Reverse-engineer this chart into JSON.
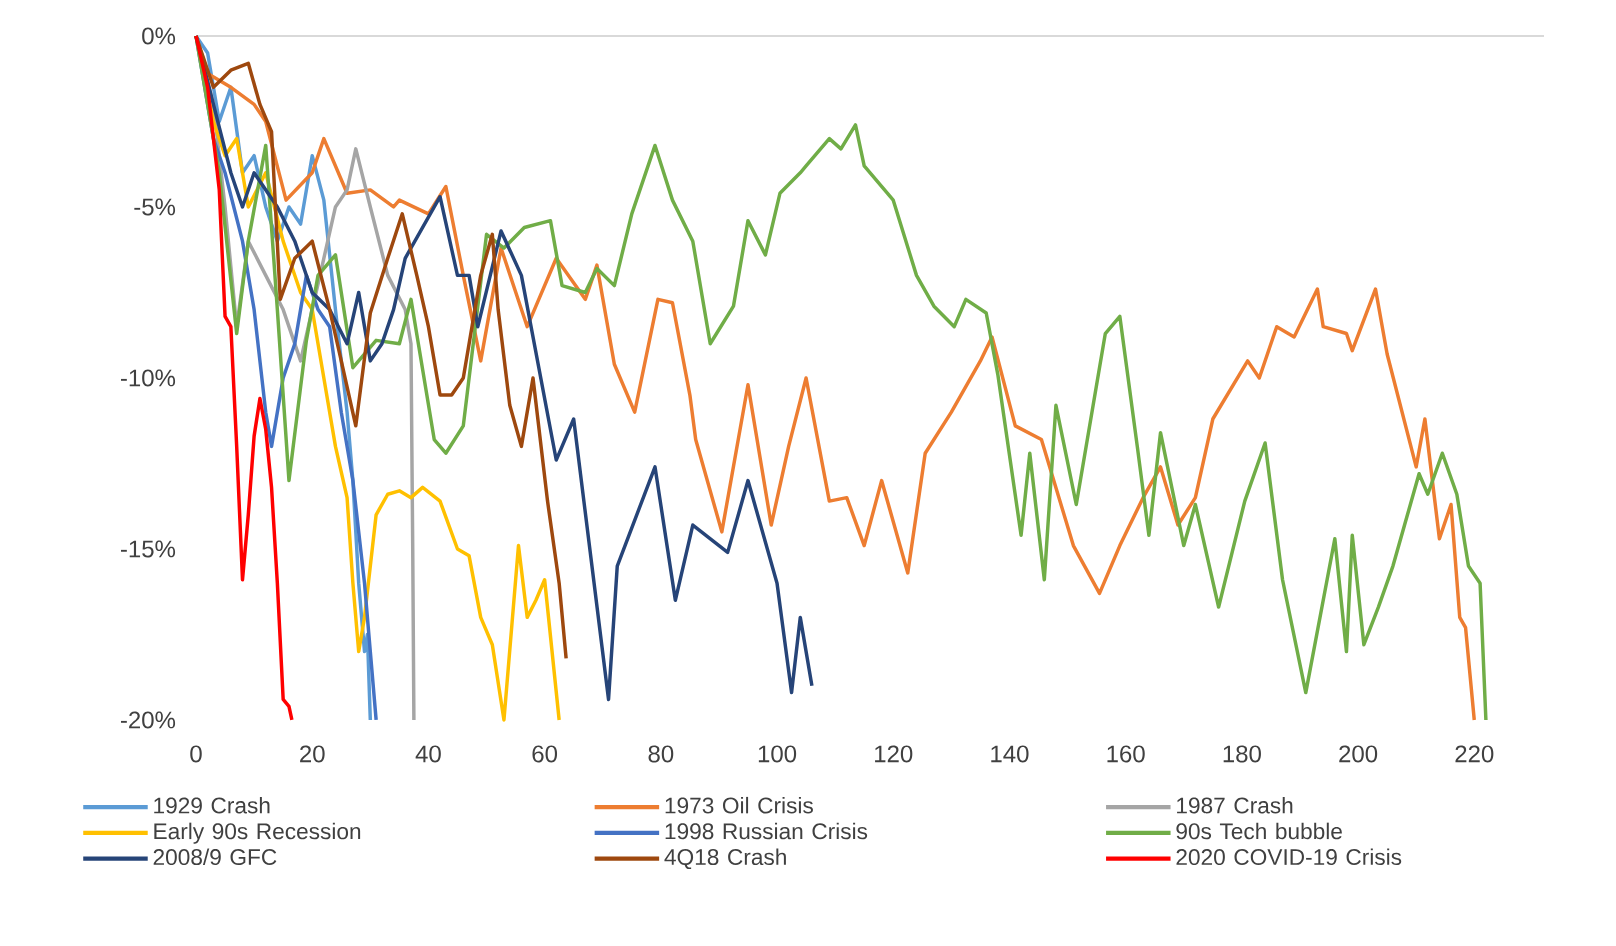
{
  "chart_data": {
    "type": "line",
    "xlim": [
      0,
      232
    ],
    "ylim": [
      -20,
      0
    ],
    "xticks": [
      0,
      20,
      40,
      60,
      80,
      100,
      120,
      140,
      160,
      180,
      200,
      220
    ],
    "yticks": [
      {
        "value": -20,
        "label": "-20%"
      },
      {
        "value": -15,
        "label": "-15%"
      },
      {
        "value": -10,
        "label": "-10%"
      },
      {
        "value": -5,
        "label": "-5%"
      },
      {
        "value": 0,
        "label": "0%"
      }
    ],
    "legend": "bottom",
    "marker": "none",
    "line_style": "solid",
    "series": [
      {
        "name": "1929 Crash",
        "color": "#5b9bd5",
        "x": [
          0,
          2,
          4,
          6,
          8,
          10,
          12,
          14,
          16,
          18,
          20,
          22,
          24,
          26,
          27,
          28,
          29,
          29.5,
          30
        ],
        "values": [
          0,
          -0.5,
          -2.5,
          -1.5,
          -4,
          -3.5,
          -5,
          -6,
          -5,
          -5.5,
          -3.5,
          -4.8,
          -8,
          -11,
          -13,
          -16,
          -18,
          -17.5,
          -20
        ]
      },
      {
        "name": "1973 Oil Crisis",
        "color": "#ed7d31",
        "x": [
          0,
          2,
          6,
          10,
          12,
          15.5,
          20,
          22,
          26,
          30,
          34,
          35,
          40,
          43,
          46,
          49,
          52.5,
          57,
          62,
          67,
          69,
          72,
          75.5,
          79.5,
          82,
          85,
          86,
          90.5,
          95,
          99,
          102,
          105,
          109,
          112,
          115,
          118,
          122.5,
          125.5,
          130,
          135,
          137,
          141,
          145.5,
          151,
          155.5,
          159,
          163,
          166,
          169,
          172,
          175,
          181,
          183,
          186,
          189,
          193,
          194,
          198,
          199,
          203,
          205,
          210,
          211.5,
          214,
          216,
          217.5,
          218.5,
          220
        ],
        "values": [
          0,
          -1.1,
          -1.5,
          -2,
          -2.5,
          -4.8,
          -4,
          -3,
          -4.6,
          -4.5,
          -5,
          -4.8,
          -5.2,
          -4.4,
          -7,
          -9.5,
          -6.2,
          -8.5,
          -6.5,
          -7.7,
          -6.7,
          -9.6,
          -11,
          -7.7,
          -7.8,
          -10.5,
          -11.8,
          -14.5,
          -10.2,
          -14.3,
          -12,
          -10,
          -13.6,
          -13.5,
          -14.9,
          -13,
          -15.7,
          -12.2,
          -11,
          -9.5,
          -8.8,
          -11.4,
          -11.8,
          -14.9,
          -16.3,
          -14.9,
          -13.5,
          -12.6,
          -14.3,
          -13.5,
          -11.2,
          -9.5,
          -10,
          -8.5,
          -8.8,
          -7.4,
          -8.5,
          -8.7,
          -9.2,
          -7.4,
          -9.3,
          -12.6,
          -11.2,
          -14.7,
          -13.7,
          -17,
          -17.3,
          -20
        ]
      },
      {
        "name": "1987 Crash",
        "color": "#a5a5a5",
        "x": [
          0,
          3,
          5,
          7,
          9,
          12,
          15,
          18,
          20,
          22,
          24,
          26,
          27.5,
          30,
          33,
          36,
          37,
          37.3,
          37.5
        ],
        "values": [
          0,
          -2,
          -5,
          -8.5,
          -6,
          -7,
          -8,
          -9.5,
          -8,
          -6.5,
          -5,
          -4.5,
          -3.3,
          -5,
          -7,
          -8,
          -9,
          -15,
          -20
        ]
      },
      {
        "name": "Early 90s Recession",
        "color": "#ffc000",
        "x": [
          0,
          3,
          5,
          7,
          9,
          12,
          15,
          18,
          20,
          22,
          24,
          26,
          27,
          28,
          29,
          31,
          33,
          35,
          37,
          39,
          42,
          45,
          47,
          49,
          51,
          53,
          55.5,
          57,
          58.5,
          60,
          62.5
        ],
        "values": [
          0,
          -2.5,
          -3.5,
          -3,
          -5,
          -4,
          -6,
          -7.5,
          -8,
          -10,
          -12,
          -13.5,
          -16,
          -18,
          -17,
          -14,
          -13.4,
          -13.3,
          -13.5,
          -13.2,
          -13.6,
          -15,
          -15.2,
          -17,
          -17.8,
          -20,
          -14.9,
          -17,
          -16.5,
          -15.9,
          -20
        ]
      },
      {
        "name": "1998 Russian Crisis",
        "color": "#4472c4",
        "x": [
          0,
          3,
          5,
          8,
          10,
          12,
          13,
          15,
          17,
          19,
          21,
          23,
          25,
          27,
          29,
          30,
          31
        ],
        "values": [
          0,
          -3,
          -4,
          -6,
          -8,
          -11,
          -12,
          -10,
          -9,
          -7,
          -8,
          -8.5,
          -11,
          -13,
          -16,
          -18,
          -20
        ]
      },
      {
        "name": "90s Tech bubble",
        "color": "#70ad47",
        "x": [
          0,
          2,
          4,
          7,
          9,
          12,
          14,
          16,
          19,
          21,
          24,
          27,
          31,
          35,
          37,
          41,
          43,
          46,
          50,
          53,
          56.5,
          61,
          63,
          67,
          69,
          72,
          75,
          79,
          82,
          85.5,
          88.5,
          92.5,
          95,
          98,
          100.5,
          104,
          105,
          109,
          111,
          113.5,
          115,
          120,
          124,
          127,
          130.5,
          132.5,
          136,
          138,
          142,
          143.5,
          146,
          148,
          151.5,
          156.5,
          159,
          162,
          164,
          166,
          170,
          172,
          176,
          180.5,
          184,
          187,
          191,
          196,
          198,
          199,
          201,
          203.5,
          206,
          208,
          210.5,
          212,
          214.5,
          217,
          219,
          221,
          222
        ],
        "values": [
          0,
          -2,
          -4,
          -8.7,
          -6,
          -3.2,
          -8,
          -13,
          -8.9,
          -7,
          -6.4,
          -9.7,
          -8.9,
          -9,
          -7.7,
          -11.8,
          -12.2,
          -11.4,
          -5.8,
          -6.2,
          -5.6,
          -5.4,
          -7.3,
          -7.5,
          -6.8,
          -7.3,
          -5.2,
          -3.2,
          -4.8,
          -6,
          -9,
          -7.9,
          -5.4,
          -6.4,
          -4.6,
          -4,
          -3.8,
          -3,
          -3.3,
          -2.6,
          -3.8,
          -4.8,
          -7,
          -7.9,
          -8.5,
          -7.7,
          -8.1,
          -9.9,
          -14.6,
          -12.2,
          -15.9,
          -10.8,
          -13.7,
          -8.7,
          -8.2,
          -12,
          -14.6,
          -11.6,
          -14.9,
          -13.7,
          -16.7,
          -13.6,
          -11.9,
          -15.9,
          -19.2,
          -14.7,
          -18,
          -14.6,
          -17.8,
          -16.7,
          -15.5,
          -14.3,
          -12.8,
          -13.4,
          -12.2,
          -13.4,
          -15.5,
          -16,
          -20
        ]
      },
      {
        "name": "2008/9 GFC",
        "color": "#264478",
        "x": [
          0,
          3,
          6,
          8,
          10,
          14,
          17,
          20,
          23,
          26,
          28,
          30,
          32,
          34,
          36,
          42,
          45,
          47,
          48.5,
          52.5,
          56,
          62,
          65,
          71,
          72.5,
          79,
          82.5,
          85.5,
          91.5,
          95,
          100,
          102.5,
          104,
          106
        ],
        "values": [
          0,
          -2,
          -4,
          -5,
          -4,
          -5,
          -6,
          -7.5,
          -8,
          -9,
          -7.5,
          -9.5,
          -9,
          -8,
          -6.5,
          -4.7,
          -7,
          -7,
          -8.5,
          -5.7,
          -7,
          -12.4,
          -11.2,
          -19.4,
          -15.5,
          -12.6,
          -16.5,
          -14.3,
          -15.1,
          -13,
          -16,
          -19.2,
          -17,
          -19
        ]
      },
      {
        "name": "4Q18 Crash",
        "color": "#9e480e",
        "x": [
          0,
          3,
          6,
          9,
          11,
          13,
          14.5,
          17,
          20,
          23,
          25,
          27.5,
          30,
          33,
          35.5,
          38,
          40,
          42,
          44,
          46,
          49,
          51,
          52,
          54,
          56,
          58,
          60.5,
          62.5,
          63.7
        ],
        "values": [
          0,
          -1.5,
          -1,
          -0.8,
          -2,
          -2.8,
          -7.7,
          -6.5,
          -6,
          -8,
          -9.5,
          -11.4,
          -8.1,
          -6.5,
          -5.2,
          -7,
          -8.5,
          -10.5,
          -10.5,
          -10,
          -7,
          -5.8,
          -8,
          -10.8,
          -12,
          -10,
          -13.6,
          -16,
          -18.2
        ]
      },
      {
        "name": "2020 COVID-19 Crisis",
        "color": "#ff0000",
        "x": [
          0,
          2,
          4,
          5,
          6,
          7,
          8,
          9,
          10,
          11,
          12,
          13,
          14,
          15,
          16,
          16.5
        ],
        "values": [
          0,
          -1.5,
          -4.5,
          -8.2,
          -8.5,
          -12,
          -15.9,
          -14,
          -11.7,
          -10.6,
          -11.5,
          -13.2,
          -16,
          -19.4,
          -19.6,
          -20
        ]
      }
    ]
  }
}
